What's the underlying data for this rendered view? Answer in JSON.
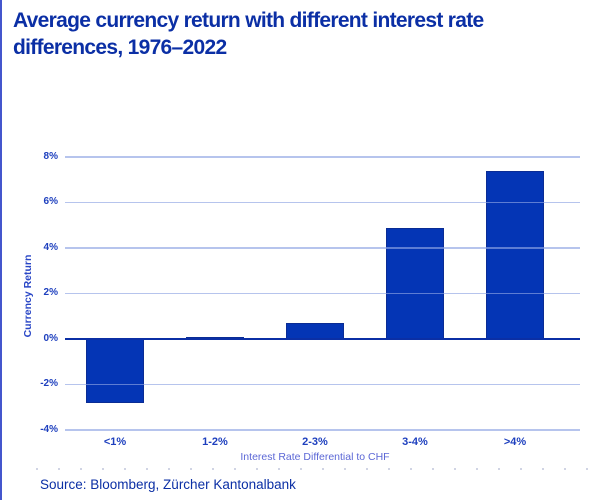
{
  "colors": {
    "title_text": "#0B2FA5",
    "source_text": "#0B2FA5",
    "bar_fill": "#0435B5",
    "bar_border": "#0A2C94",
    "gridline": "#8FA4E4",
    "zero_line": "#0B2FA5",
    "tick_label": "#1D3FBE",
    "axis_title": "#5B67D6",
    "y_axis_label": "#2946C6",
    "left_accent": "#4456CD",
    "background": "#FFFFFF"
  },
  "chart_data": {
    "type": "bar",
    "title": "Average currency return with different interest rate differences, 1976–2022",
    "categories": [
      "<1%",
      "1-2%",
      "2-3%",
      "3-4%",
      ">4%"
    ],
    "values": [
      -2.8,
      0.1,
      0.7,
      4.9,
      7.4
    ],
    "xlabel": "Interest Rate Differential to CHF",
    "ylabel": "Currency Return",
    "ylim": [
      -4,
      8
    ],
    "yticks": [
      8,
      6,
      4,
      2,
      0,
      -2,
      -4
    ],
    "ytick_labels": [
      "8%",
      "6%",
      "4%",
      "2%",
      "0%",
      "-2%",
      "-4%"
    ],
    "grid": true,
    "legend": false,
    "source": "Source: Bloomberg, Zürcher Kantonalbank"
  }
}
